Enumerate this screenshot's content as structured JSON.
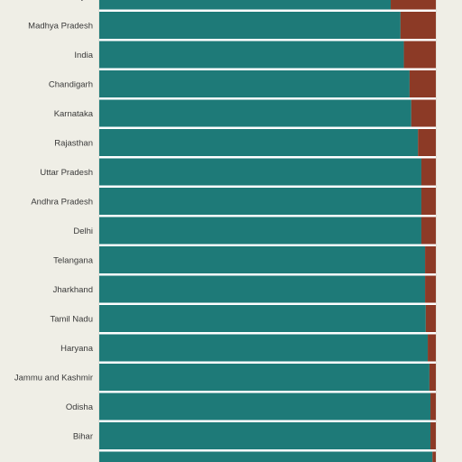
{
  "chart_data": {
    "type": "bar",
    "stacked": true,
    "orientation": "horizontal",
    "unit": "share",
    "xlim": [
      0,
      1
    ],
    "grid": true,
    "categories": [
      "Punjab",
      "Madhya Pradesh",
      "India",
      "Chandigarh",
      "Karnataka",
      "Rajasthan",
      "Uttar Pradesh",
      "Andhra Pradesh",
      "Delhi",
      "Telangana",
      "Jharkhand",
      "Tamil Nadu",
      "Haryana",
      "Jammu and Kashmir",
      "Odisha",
      "Bihar",
      ""
    ],
    "series": [
      {
        "color": "#1e7a78",
        "values": [
          0.866,
          0.895,
          0.905,
          0.922,
          0.927,
          0.947,
          0.957,
          0.957,
          0.957,
          0.968,
          0.968,
          0.97,
          0.976,
          0.981,
          0.984,
          0.984,
          0.99
        ]
      },
      {
        "color": "#8c3a26",
        "values": [
          0.134,
          0.105,
          0.095,
          0.078,
          0.073,
          0.053,
          0.043,
          0.043,
          0.043,
          0.032,
          0.032,
          0.03,
          0.024,
          0.019,
          0.016,
          0.016,
          0.01
        ]
      }
    ]
  }
}
